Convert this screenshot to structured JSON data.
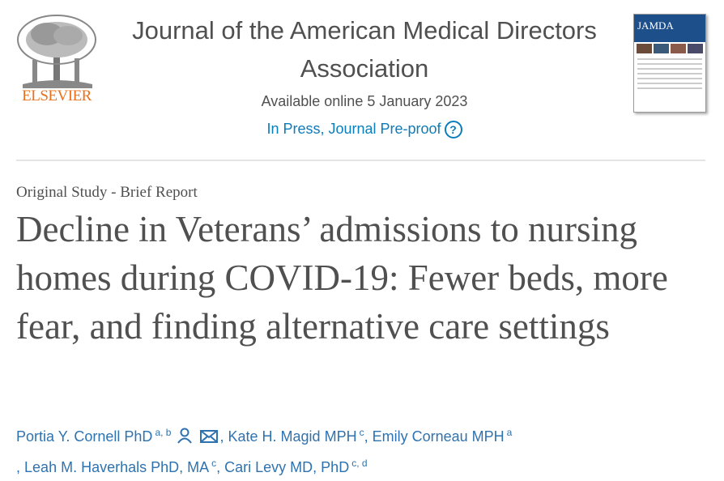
{
  "header": {
    "publisher": "ELSEVIER",
    "journal_title": "Journal of the American Medical Directors Association",
    "availability": "Available online 5 January 2023",
    "status": "In Press, Journal Pre-proof",
    "help_icon": "?",
    "cover": {
      "title": "JAMDA"
    }
  },
  "article": {
    "type": "Original Study - Brief Report",
    "title": "Decline in Veterans’ admissions to nursing homes during COVID-19: Fewer beds, more fear, and finding alternative care settings",
    "separator": ",",
    "authors": [
      {
        "name": "Portia Y. Cornell PhD",
        "sup": "a, b"
      },
      {
        "name": "Kate H. Magid MPH",
        "sup": "c"
      },
      {
        "name": "Emily Corneau MPH",
        "sup": "a"
      },
      {
        "name": "Leah M. Haverhals PhD, MA",
        "sup": "c"
      },
      {
        "name": "Cari Levy MD, PhD",
        "sup": "c, d"
      }
    ]
  }
}
